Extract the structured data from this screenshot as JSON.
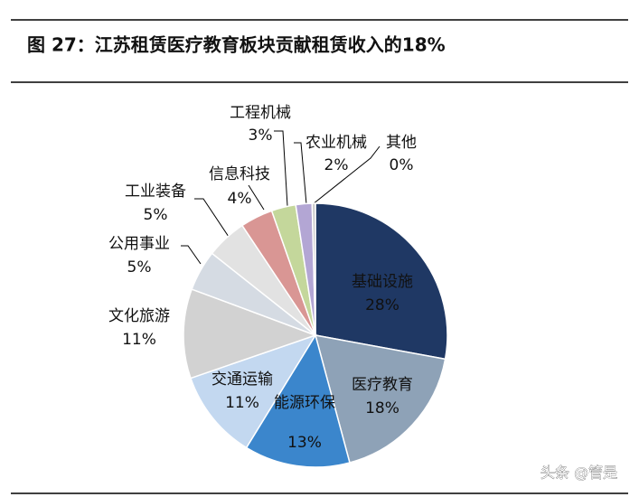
{
  "chart_data": {
    "type": "pie",
    "title": "图 27：江苏租赁医疗教育板块贡献租赁收入的18%",
    "categories": [
      "基础设施",
      "医疗教育",
      "能源环保",
      "交通运输",
      "文化旅游",
      "公用事业",
      "工业装备",
      "信息科技",
      "工程机械",
      "农业机械",
      "其他"
    ],
    "values": [
      28,
      18,
      13,
      11,
      11,
      5,
      5,
      4,
      3,
      2,
      0.4
    ],
    "value_labels": [
      "28%",
      "18%",
      "13%",
      "11%",
      "11%",
      "5%",
      "5%",
      "4%",
      "3%",
      "2%",
      "0%"
    ],
    "colors": [
      "#1f3864",
      "#8ea2b7",
      "#3b86cc",
      "#c3d8f0",
      "#d2d2d2",
      "#d5dbe3",
      "#e2e2e2",
      "#d99694",
      "#c4d79b",
      "#b3a6d4",
      "#c8c8c8"
    ],
    "watermark": "头条 @管是"
  }
}
